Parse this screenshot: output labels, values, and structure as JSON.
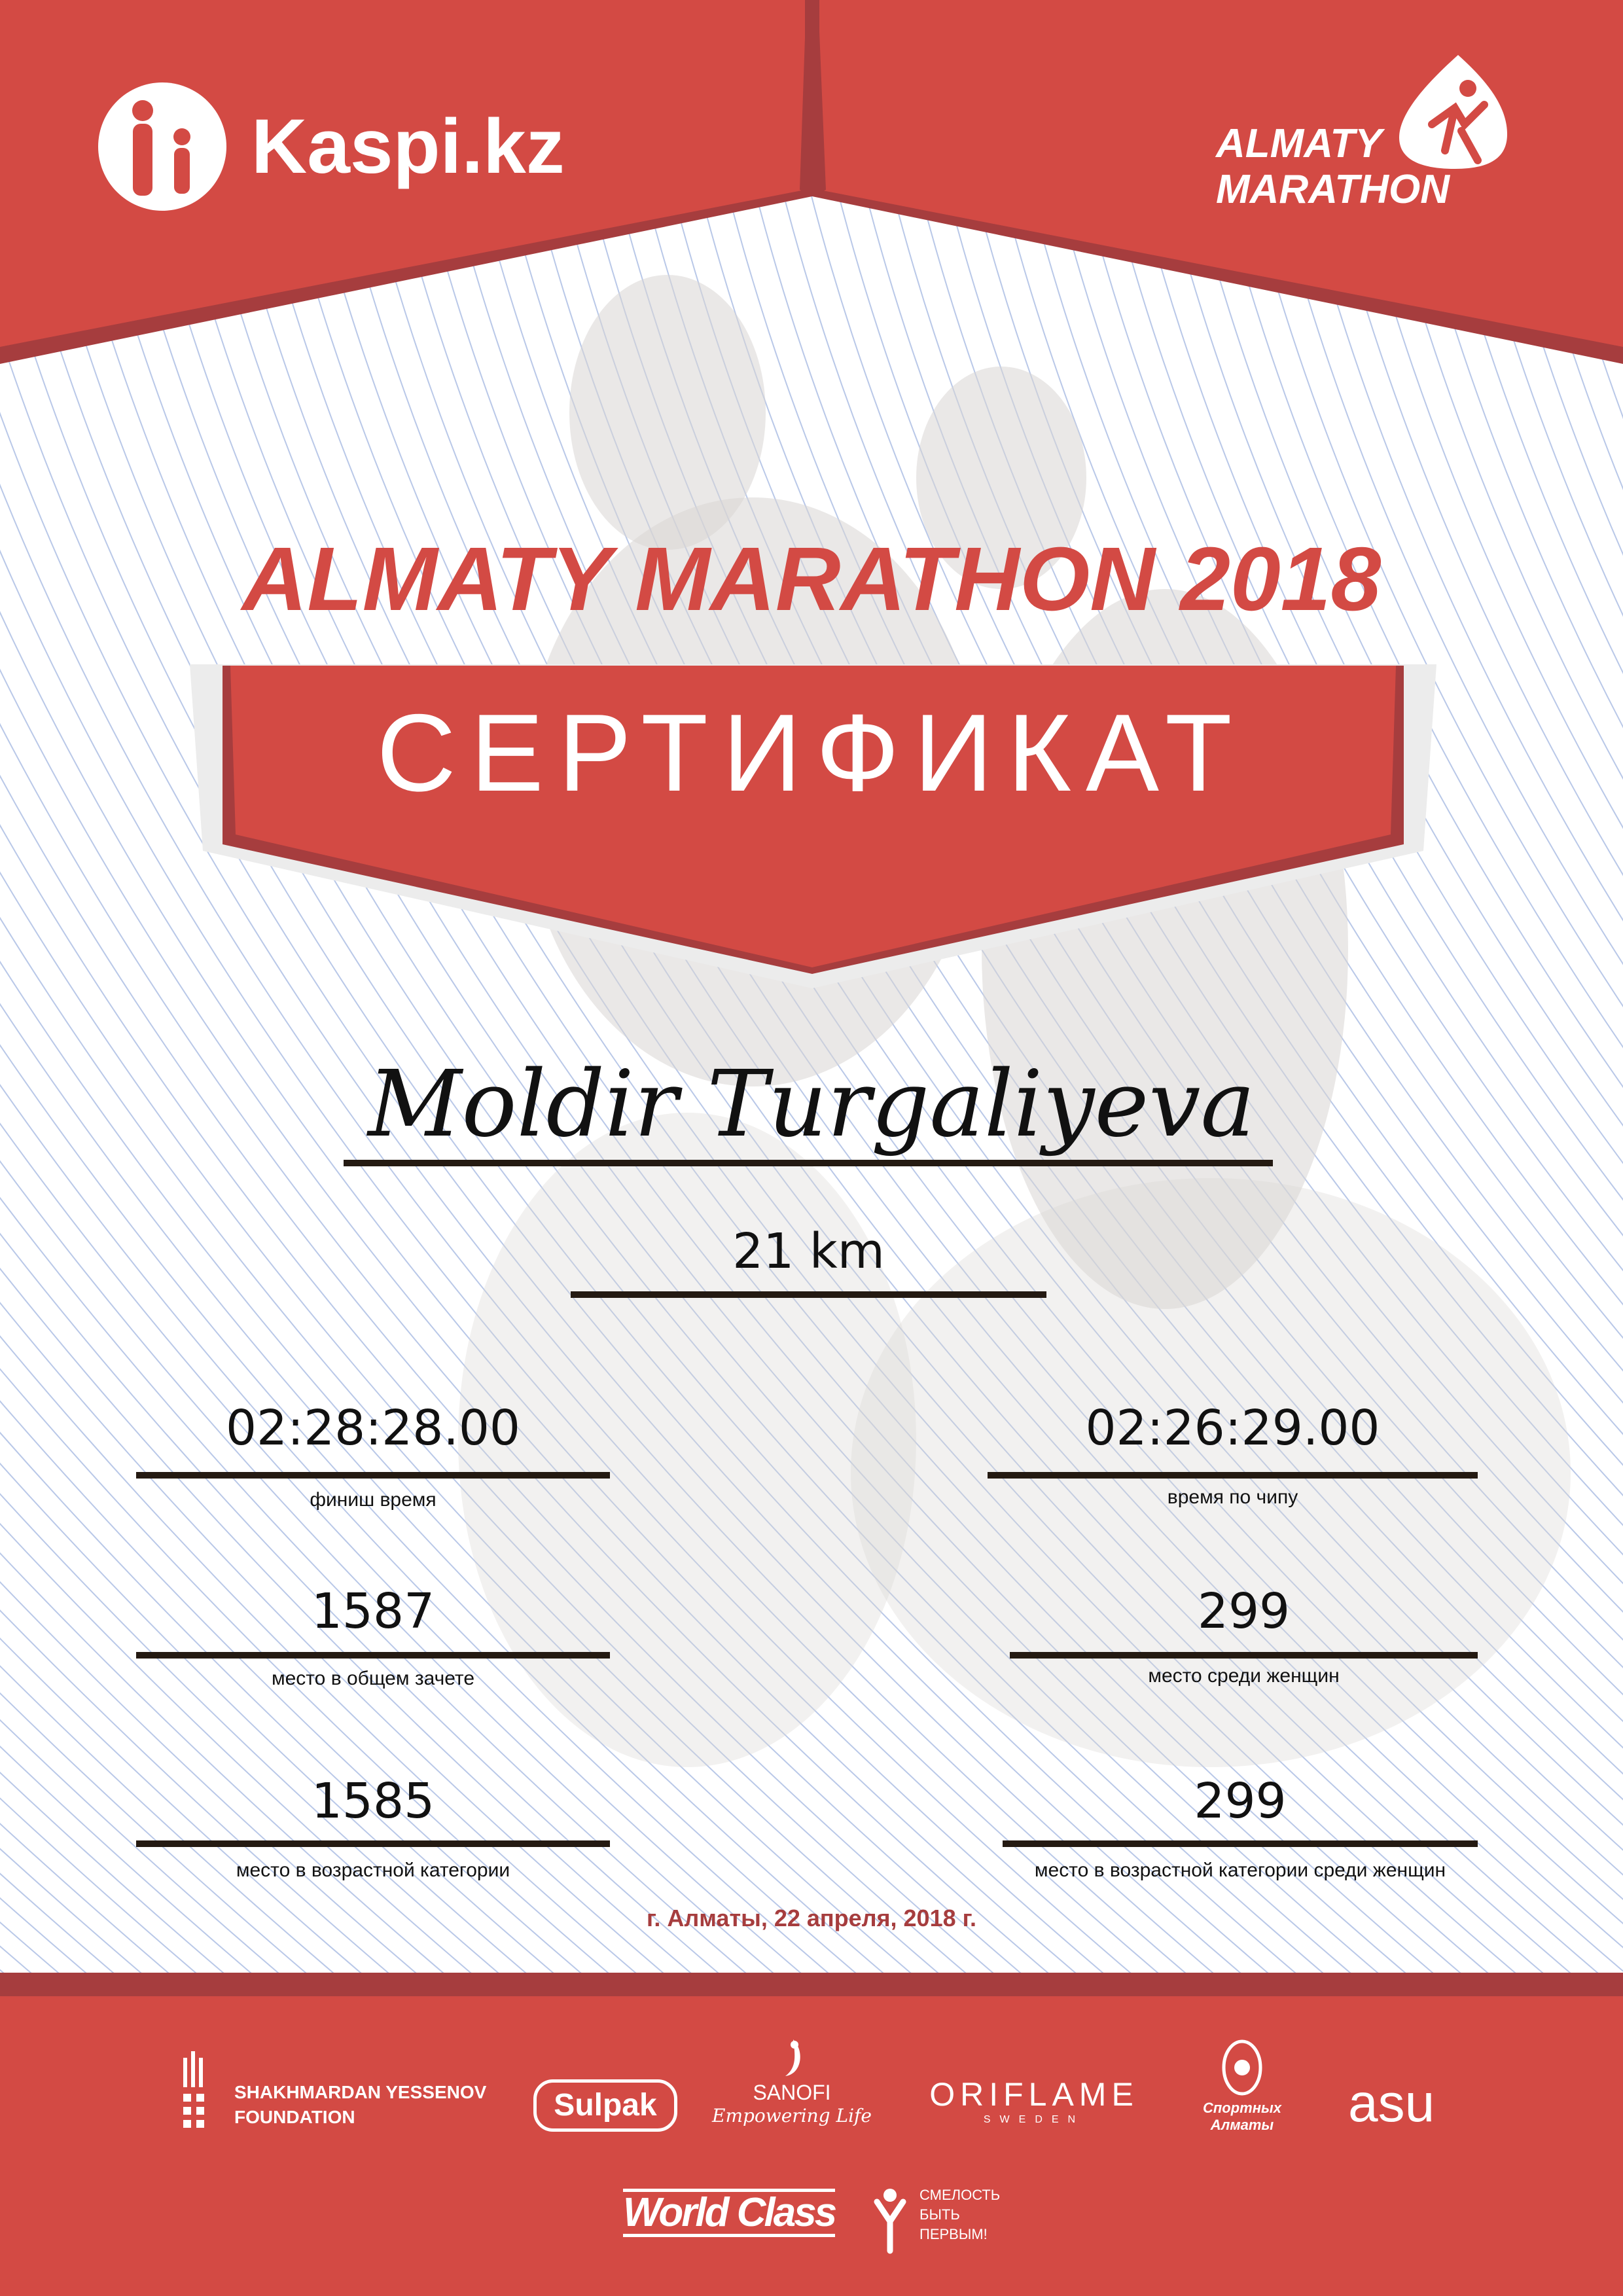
{
  "colors": {
    "brand_red": "#d34a44",
    "dark_red": "#a63d3e",
    "line_blue": "#b9c8e8"
  },
  "header": {
    "left_logo": {
      "icon": "kaspi-people-icon",
      "text": "Kaspi.kz"
    },
    "right_logo": {
      "icon": "runner-drop-icon",
      "line1": "ALMATY",
      "line2": "MARATHON"
    }
  },
  "event_title": "ALMATY MARATHON 2018",
  "banner_title": "СЕРТИФИКАТ",
  "participant": {
    "name": "Moldir Turgaliyeva",
    "distance": "21 km"
  },
  "results": {
    "finish_time": {
      "value": "02:28:28.00",
      "label": "финиш время"
    },
    "chip_time": {
      "value": "02:26:29.00",
      "label": "время по чипу"
    },
    "overall_place": {
      "value": "1587",
      "label": "место в общем зачете"
    },
    "women_place": {
      "value": "299",
      "label": "место среди женщин"
    },
    "age_place": {
      "value": "1585",
      "label": "место в возрастной категории"
    },
    "women_age_place": {
      "value": "299",
      "label": "место в возрастной категории среди женщин"
    }
  },
  "date_line": "г. Алматы, 22 апреля, 2018 г.",
  "sponsors": {
    "yessenov": {
      "line1": "SHAKHMARDAN YESSENOV",
      "line2": "FOUNDATION"
    },
    "sulpak": "Sulpak",
    "sanofi": {
      "name": "SANOFI",
      "tagline": "Empowering Life"
    },
    "oriflame": {
      "name": "ORIFLAME",
      "sub": "SWEDEN"
    },
    "sport_almaty": {
      "line1": "Спортных",
      "line2": "Алматы"
    },
    "asu": "asu",
    "worldclass": "World Class",
    "courage": {
      "line1": "СМЕЛОСТЬ",
      "line2": "БЫТЬ",
      "line3": "ПЕРВЫМ!"
    }
  }
}
